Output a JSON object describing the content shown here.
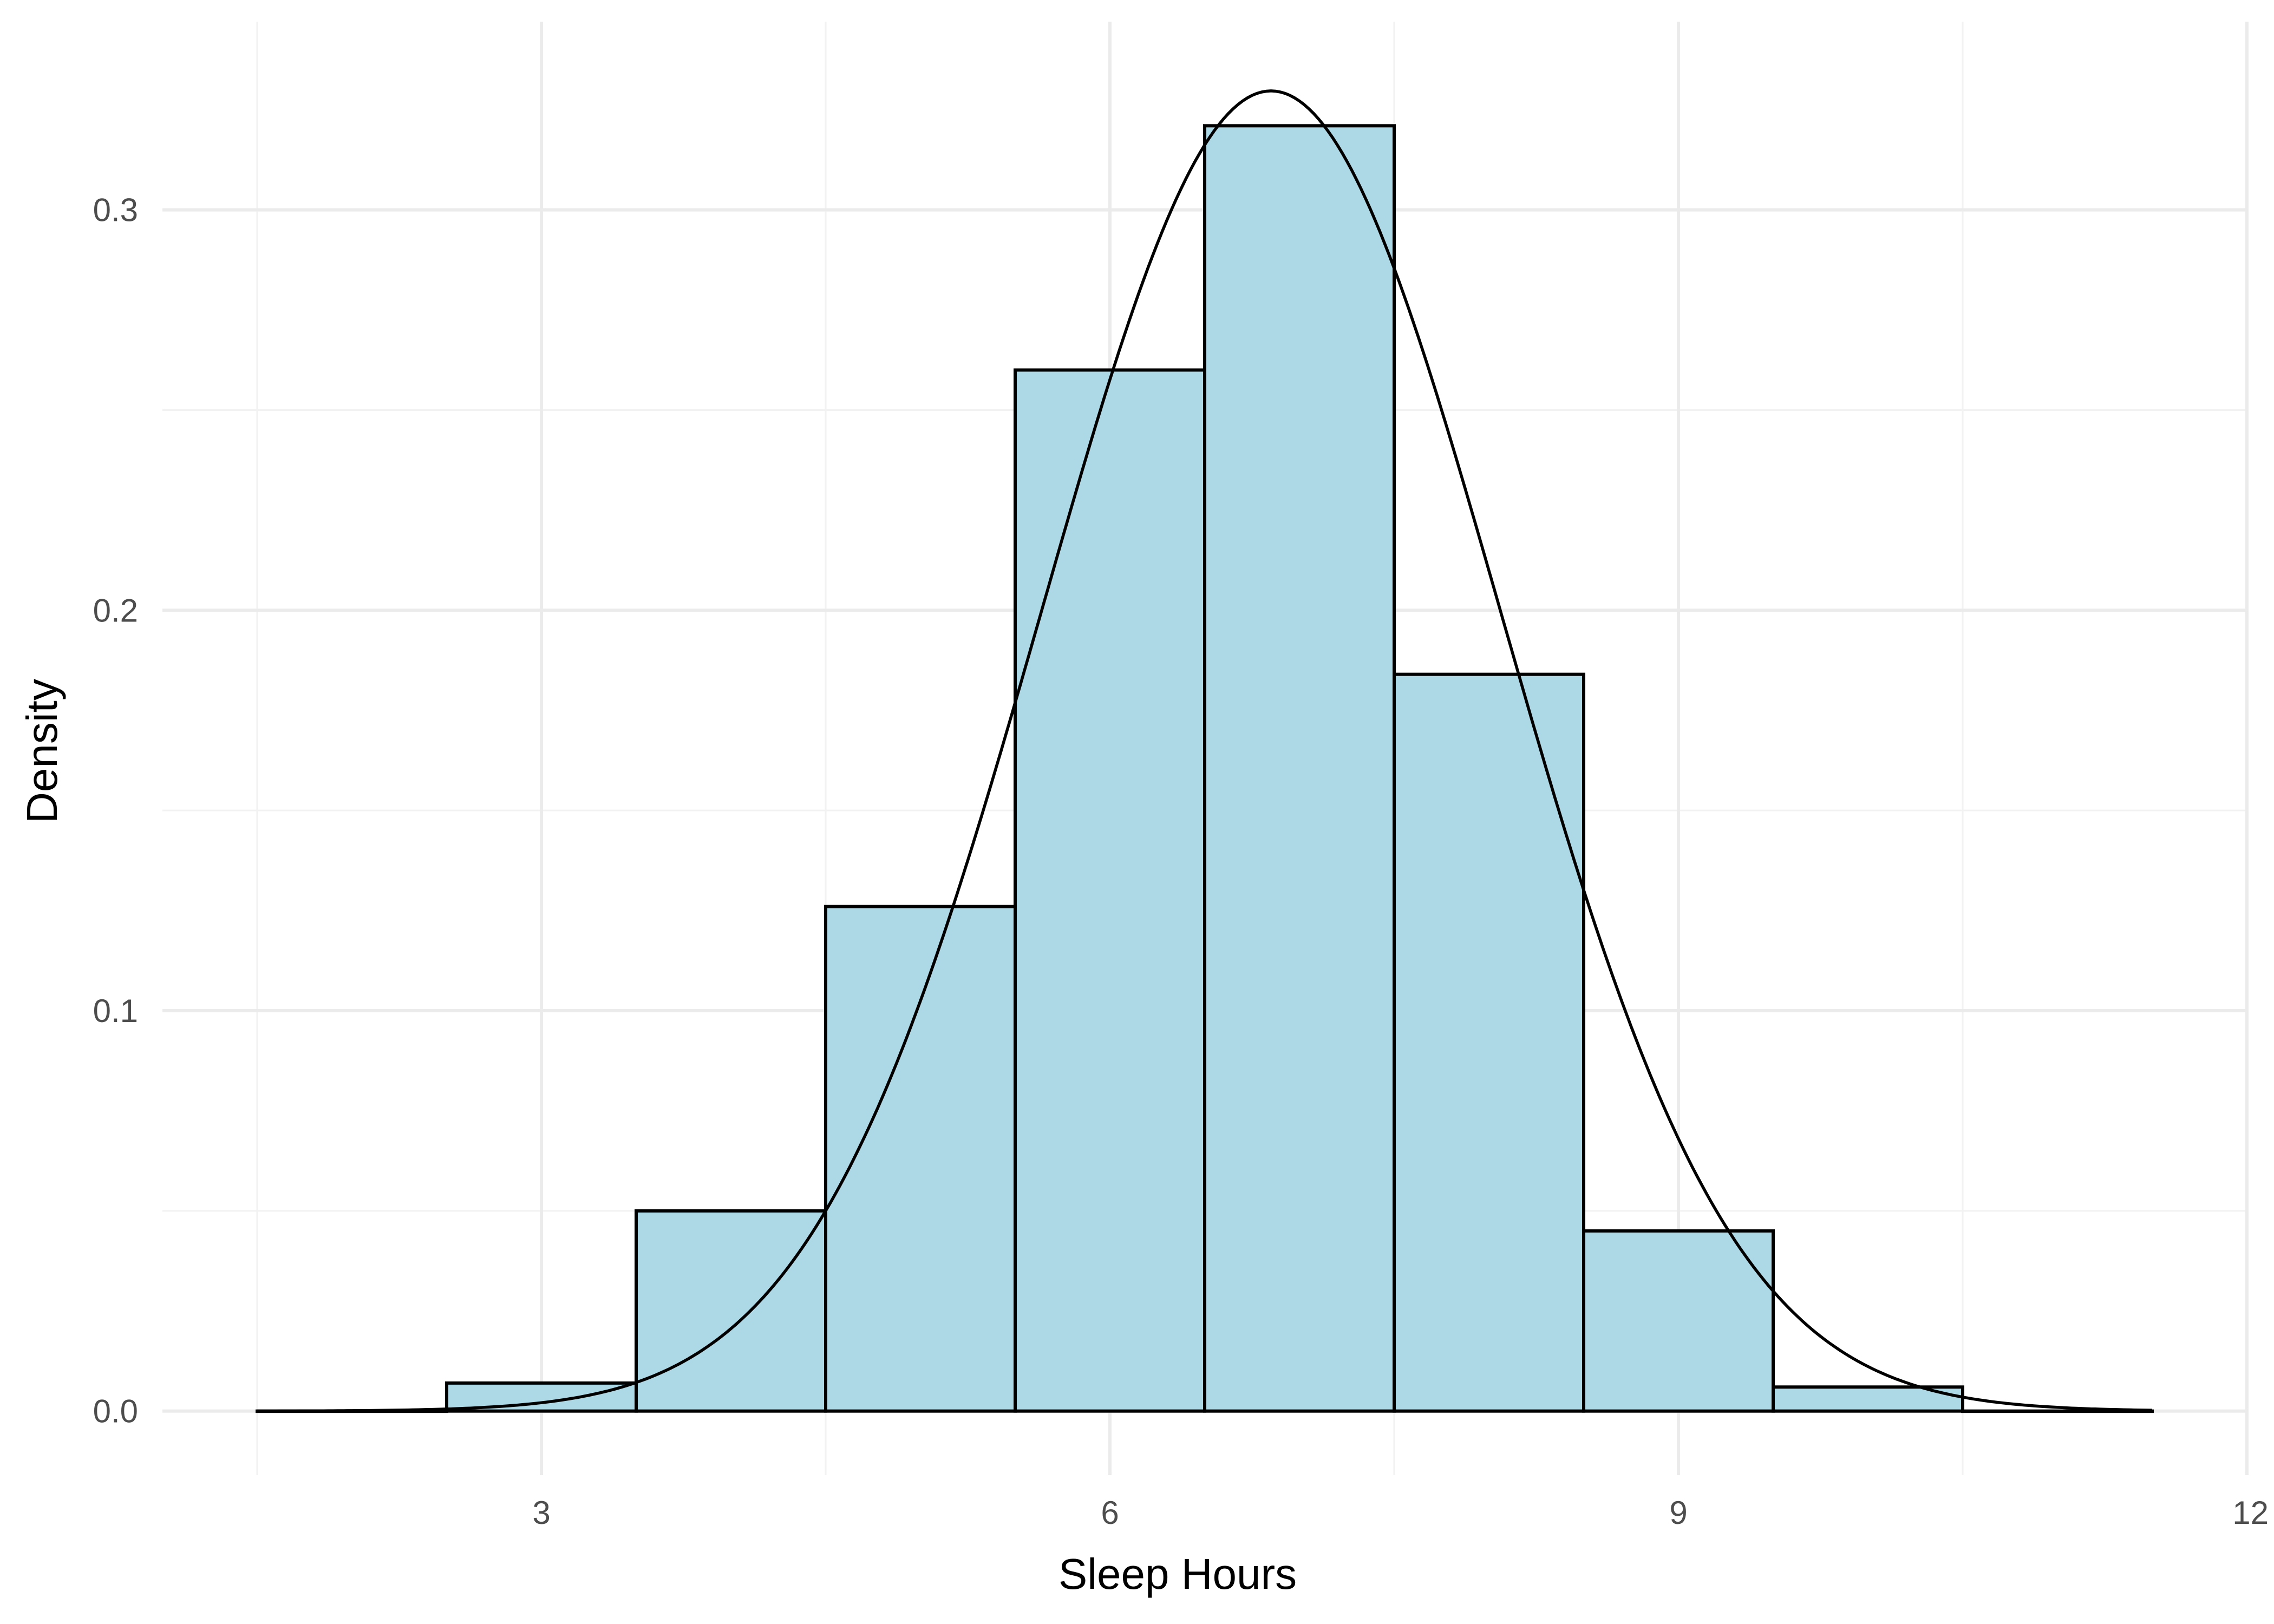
{
  "chart_data": {
    "type": "bar",
    "subtype": "histogram-with-density-curve",
    "title": "",
    "xlabel": "Sleep Hours",
    "ylabel": "Density",
    "xlim": [
      1.0,
      12.0
    ],
    "ylim": [
      -0.016,
      0.347
    ],
    "x_ticks": [
      3,
      6,
      9,
      12
    ],
    "x_tick_labels": [
      "3",
      "6",
      "9",
      "12"
    ],
    "y_ticks": [
      0.0,
      0.1,
      0.2,
      0.3
    ],
    "y_tick_labels": [
      "0.0",
      "0.1",
      "0.2",
      "0.3"
    ],
    "x_minor_gridlines": [
      1.5,
      4.5,
      7.5,
      10.5
    ],
    "y_minor_gridlines": [
      0.05,
      0.15,
      0.25
    ],
    "grid": true,
    "bins": [
      {
        "x0": 1.5,
        "x1": 2.5,
        "value": 0.0
      },
      {
        "x0": 2.5,
        "x1": 3.5,
        "value": 0.007
      },
      {
        "x0": 3.5,
        "x1": 4.5,
        "value": 0.05
      },
      {
        "x0": 4.5,
        "x1": 5.5,
        "value": 0.126
      },
      {
        "x0": 5.5,
        "x1": 6.5,
        "value": 0.26
      },
      {
        "x0": 6.5,
        "x1": 7.5,
        "value": 0.321
      },
      {
        "x0": 7.5,
        "x1": 8.5,
        "value": 0.184
      },
      {
        "x0": 8.5,
        "x1": 9.5,
        "value": 0.045
      },
      {
        "x0": 9.5,
        "x1": 10.5,
        "value": 0.006
      },
      {
        "x0": 10.5,
        "x1": 11.5,
        "value": 0.0
      }
    ],
    "density_curve": {
      "mean": 6.85,
      "sd": 1.21,
      "x_range": [
        1.5,
        11.5
      ]
    },
    "colors": {
      "bar_fill": "#add8e6",
      "bar_outline": "#000000",
      "curve": "#000000",
      "grid_major": "#ebebeb",
      "grid_minor": "#f2f2f2",
      "tick_text": "#4d4d4d"
    }
  }
}
